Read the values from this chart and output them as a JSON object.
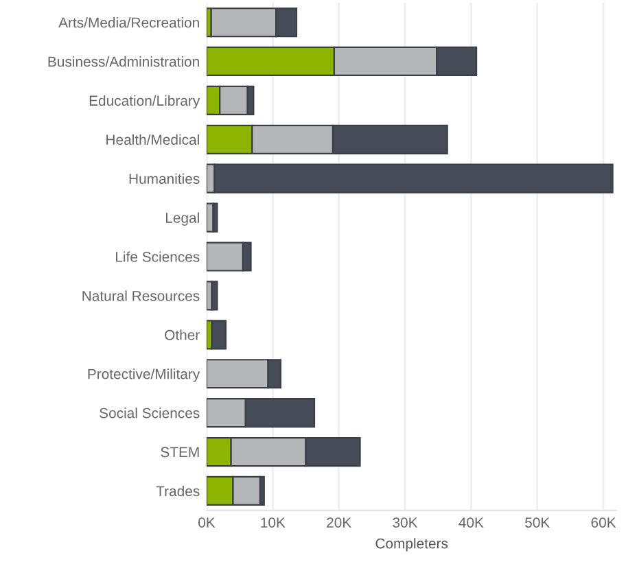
{
  "chart_data": {
    "type": "bar",
    "orientation": "horizontal",
    "stacked": true,
    "xlabel": "Completers",
    "categories": [
      "Arts/Media/Recreation",
      "Business/Administration",
      "Education/Library",
      "Health/Medical",
      "Humanities",
      "Legal",
      "Life Sciences",
      "Natural Resources",
      "Other",
      "Protective/Military",
      "Social Sciences",
      "STEM",
      "Trades"
    ],
    "series": [
      {
        "color": "#8cb400",
        "values": [
          700,
          19300,
          2000,
          6900,
          0,
          0,
          0,
          0,
          800,
          0,
          0,
          3700,
          4000
        ]
      },
      {
        "color": "#b4b6b8",
        "values": [
          9800,
          15500,
          4200,
          12200,
          1200,
          1000,
          5500,
          800,
          null,
          9300,
          5900,
          11300,
          4100
        ]
      },
      {
        "color": "#454c57",
        "values": [
          3100,
          6000,
          900,
          17300,
          60200,
          600,
          1200,
          800,
          2100,
          1900,
          10400,
          8200,
          600
        ]
      }
    ],
    "xlim": [
      0,
      62000
    ],
    "xticks": [
      {
        "value": 0,
        "label": "0K"
      },
      {
        "value": 10000,
        "label": "10K"
      },
      {
        "value": 20000,
        "label": "20K"
      },
      {
        "value": 30000,
        "label": "30K"
      },
      {
        "value": 40000,
        "label": "40K"
      },
      {
        "value": 50000,
        "label": "50K"
      },
      {
        "value": 60000,
        "label": "60K"
      }
    ],
    "grid": "x"
  }
}
